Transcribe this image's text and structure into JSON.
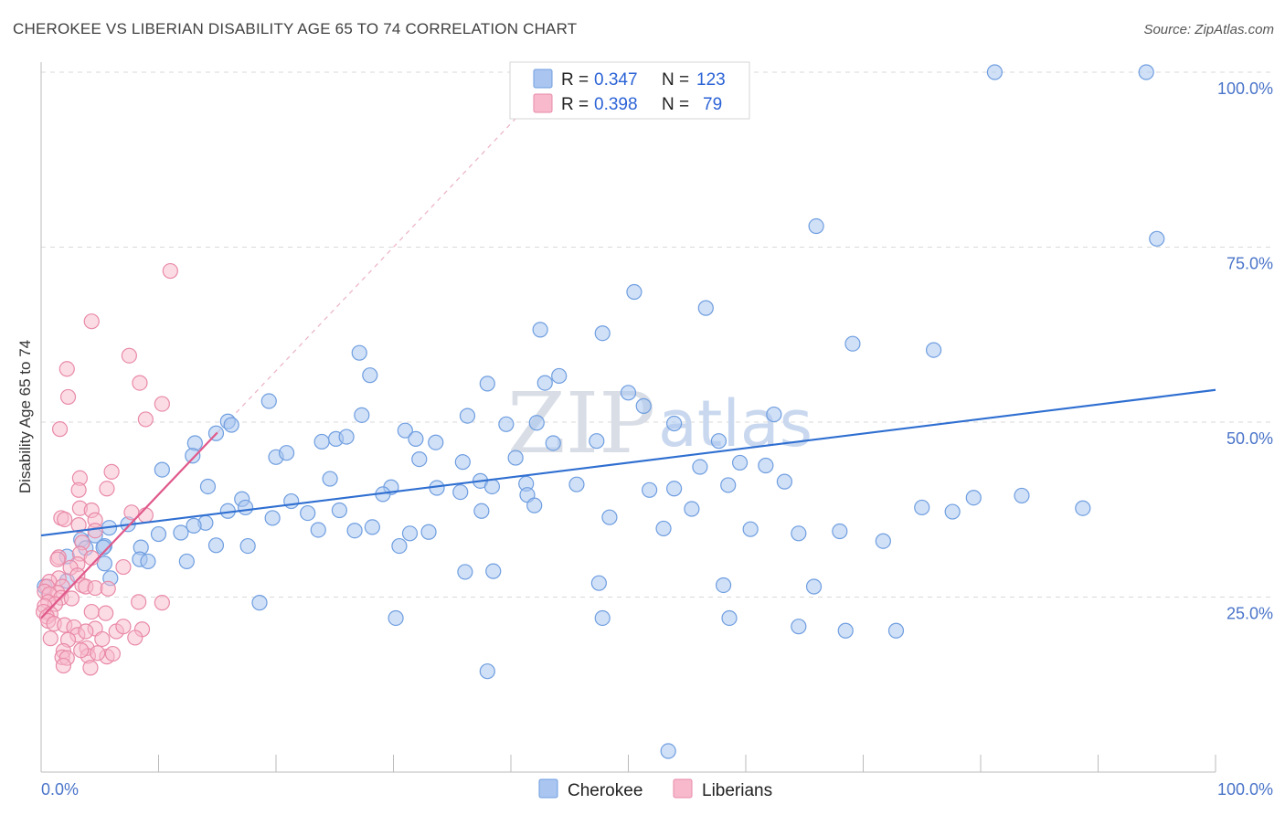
{
  "title": "CHEROKEE VS LIBERIAN DISABILITY AGE 65 TO 74 CORRELATION CHART",
  "source": "Source: ZipAtlas.com",
  "watermark": {
    "zip": "ZIP",
    "atlas": "atlas"
  },
  "colors": {
    "cherokee_fill": "#aac6f0",
    "cherokee_stroke": "#6f9ee0",
    "cherokee_line": "#2f6fd1",
    "liberian_fill": "#f7b9cb",
    "liberian_stroke": "#e98aa8",
    "liberian_line": "#e0588a",
    "axis_text": "#4a74c9",
    "grid": "#d9d9d9"
  },
  "legend": {
    "rows": [
      {
        "r_label": "R =",
        "r_value": "0.347",
        "n_label": "N =",
        "n_value": "123"
      },
      {
        "r_label": "R =",
        "r_value": "0.398",
        "n_label": "N =",
        "n_value": "79"
      }
    ]
  },
  "bottom_legend": [
    "Cherokee",
    "Liberians"
  ],
  "chart_data": {
    "type": "scatter",
    "title": "CHEROKEE VS LIBERIAN DISABILITY AGE 65 TO 74 CORRELATION CHART",
    "xlabel": "",
    "ylabel": "Disability Age 65 to 74",
    "xlim": [
      0,
      100
    ],
    "ylim": [
      0,
      102
    ],
    "x_tick_labels": [
      "0.0%",
      "100.0%"
    ],
    "y_tick_labels": [
      "25.0%",
      "50.0%",
      "75.0%",
      "100.0%"
    ],
    "y_ticks": [
      25,
      50,
      75,
      100
    ],
    "grid": true,
    "legend_position": "top-center",
    "series": [
      {
        "name": "Cherokee",
        "r": 0.347,
        "n": 123,
        "trend": {
          "x": [
            0,
            100
          ],
          "y": [
            33.8,
            54.6
          ]
        },
        "points": [
          [
            81.2,
            100
          ],
          [
            94.1,
            100
          ],
          [
            95.0,
            76.2
          ],
          [
            66.0,
            78.0
          ],
          [
            50.5,
            68.6
          ],
          [
            56.6,
            66.3
          ],
          [
            42.5,
            63.2
          ],
          [
            47.8,
            62.7
          ],
          [
            69.1,
            61.2
          ],
          [
            76.0,
            60.3
          ],
          [
            27.1,
            59.9
          ],
          [
            28.0,
            56.7
          ],
          [
            38.0,
            55.5
          ],
          [
            42.9,
            55.6
          ],
          [
            44.1,
            56.6
          ],
          [
            50.0,
            54.2
          ],
          [
            51.3,
            52.3
          ],
          [
            19.4,
            53.0
          ],
          [
            27.3,
            51.0
          ],
          [
            36.3,
            50.9
          ],
          [
            62.4,
            51.1
          ],
          [
            15.9,
            50.1
          ],
          [
            39.6,
            49.7
          ],
          [
            42.2,
            49.9
          ],
          [
            53.9,
            49.8
          ],
          [
            14.9,
            48.4
          ],
          [
            25.1,
            47.6
          ],
          [
            26.0,
            47.9
          ],
          [
            23.9,
            47.2
          ],
          [
            31.0,
            48.8
          ],
          [
            33.6,
            47.1
          ],
          [
            43.6,
            47.0
          ],
          [
            47.3,
            47.3
          ],
          [
            57.7,
            47.3
          ],
          [
            16.2,
            49.6
          ],
          [
            13.1,
            47.0
          ],
          [
            12.9,
            45.2
          ],
          [
            20.0,
            45.0
          ],
          [
            20.9,
            45.6
          ],
          [
            32.2,
            44.7
          ],
          [
            40.4,
            44.9
          ],
          [
            56.1,
            43.6
          ],
          [
            59.5,
            44.2
          ],
          [
            61.7,
            43.8
          ],
          [
            31.9,
            47.6
          ],
          [
            24.6,
            41.9
          ],
          [
            35.9,
            44.3
          ],
          [
            41.3,
            41.2
          ],
          [
            37.4,
            41.6
          ],
          [
            29.8,
            40.7
          ],
          [
            38.4,
            40.8
          ],
          [
            45.6,
            41.1
          ],
          [
            51.8,
            40.3
          ],
          [
            53.9,
            40.5
          ],
          [
            58.5,
            41.0
          ],
          [
            63.3,
            41.5
          ],
          [
            10.3,
            43.2
          ],
          [
            14.2,
            40.8
          ],
          [
            17.1,
            39.0
          ],
          [
            21.3,
            38.7
          ],
          [
            22.7,
            37.0
          ],
          [
            25.4,
            37.4
          ],
          [
            29.1,
            39.7
          ],
          [
            33.7,
            40.6
          ],
          [
            35.7,
            40.0
          ],
          [
            37.5,
            37.3
          ],
          [
            41.4,
            39.6
          ],
          [
            42.0,
            38.1
          ],
          [
            48.4,
            36.4
          ],
          [
            53.0,
            34.8
          ],
          [
            55.4,
            37.6
          ],
          [
            75.0,
            37.8
          ],
          [
            79.4,
            39.2
          ],
          [
            77.6,
            37.2
          ],
          [
            83.5,
            39.5
          ],
          [
            88.7,
            37.7
          ],
          [
            15.9,
            37.3
          ],
          [
            14.0,
            35.6
          ],
          [
            13.0,
            35.2
          ],
          [
            11.9,
            34.2
          ],
          [
            10.0,
            34.0
          ],
          [
            17.4,
            37.8
          ],
          [
            19.7,
            36.3
          ],
          [
            31.4,
            34.1
          ],
          [
            33.0,
            34.3
          ],
          [
            26.7,
            34.5
          ],
          [
            23.6,
            34.6
          ],
          [
            28.2,
            35.0
          ],
          [
            60.4,
            34.7
          ],
          [
            64.5,
            34.1
          ],
          [
            68.0,
            34.4
          ],
          [
            71.7,
            33.0
          ],
          [
            7.4,
            35.4
          ],
          [
            5.8,
            34.9
          ],
          [
            4.6,
            33.8
          ],
          [
            3.4,
            33.2
          ],
          [
            5.4,
            32.3
          ],
          [
            8.5,
            32.1
          ],
          [
            14.9,
            32.4
          ],
          [
            17.6,
            32.3
          ],
          [
            30.5,
            32.3
          ],
          [
            2.2,
            30.8
          ],
          [
            3.8,
            32.0
          ],
          [
            5.3,
            32.1
          ],
          [
            8.4,
            30.4
          ],
          [
            9.1,
            30.1
          ],
          [
            12.4,
            30.1
          ],
          [
            5.4,
            29.8
          ],
          [
            2.2,
            27.3
          ],
          [
            5.9,
            27.7
          ],
          [
            0.3,
            26.5
          ],
          [
            36.1,
            28.6
          ],
          [
            38.5,
            28.7
          ],
          [
            47.5,
            27.0
          ],
          [
            58.1,
            26.7
          ],
          [
            65.8,
            26.5
          ],
          [
            18.6,
            24.2
          ],
          [
            30.2,
            22.0
          ],
          [
            47.8,
            22.0
          ],
          [
            58.6,
            22.0
          ],
          [
            64.5,
            20.8
          ],
          [
            68.5,
            20.2
          ],
          [
            72.8,
            20.2
          ],
          [
            38.0,
            14.4
          ],
          [
            53.4,
            3.0
          ]
        ]
      },
      {
        "name": "Liberians",
        "r": 0.398,
        "n": 79,
        "trend": {
          "x": [
            0,
            15
          ],
          "y": [
            22.0,
            48.5
          ]
        },
        "points": [
          [
            11.0,
            71.6
          ],
          [
            4.3,
            64.4
          ],
          [
            7.5,
            59.5
          ],
          [
            2.2,
            57.6
          ],
          [
            8.4,
            55.6
          ],
          [
            2.3,
            53.6
          ],
          [
            10.3,
            52.6
          ],
          [
            8.9,
            50.4
          ],
          [
            1.6,
            49.0
          ],
          [
            6.0,
            42.9
          ],
          [
            3.3,
            42.0
          ],
          [
            3.2,
            40.3
          ],
          [
            5.6,
            40.5
          ],
          [
            3.3,
            37.7
          ],
          [
            4.3,
            37.4
          ],
          [
            7.7,
            37.1
          ],
          [
            8.9,
            36.7
          ],
          [
            1.7,
            36.3
          ],
          [
            2.0,
            36.1
          ],
          [
            3.2,
            35.3
          ],
          [
            4.6,
            36.0
          ],
          [
            4.6,
            34.5
          ],
          [
            3.5,
            32.8
          ],
          [
            3.3,
            31.2
          ],
          [
            1.5,
            30.7
          ],
          [
            1.4,
            30.4
          ],
          [
            4.3,
            30.6
          ],
          [
            3.1,
            29.7
          ],
          [
            2.5,
            29.2
          ],
          [
            7.0,
            29.3
          ],
          [
            3.1,
            28.1
          ],
          [
            1.5,
            27.7
          ],
          [
            0.7,
            27.2
          ],
          [
            0.5,
            26.5
          ],
          [
            1.8,
            26.5
          ],
          [
            3.5,
            26.7
          ],
          [
            3.8,
            26.5
          ],
          [
            4.6,
            26.3
          ],
          [
            5.7,
            26.2
          ],
          [
            0.3,
            25.8
          ],
          [
            1.4,
            25.6
          ],
          [
            0.7,
            25.4
          ],
          [
            1.7,
            24.9
          ],
          [
            2.6,
            24.8
          ],
          [
            0.6,
            24.3
          ],
          [
            1.2,
            24.0
          ],
          [
            0.3,
            23.7
          ],
          [
            8.3,
            24.3
          ],
          [
            10.3,
            24.2
          ],
          [
            0.2,
            22.9
          ],
          [
            0.8,
            22.6
          ],
          [
            0.5,
            22.2
          ],
          [
            4.3,
            22.9
          ],
          [
            5.5,
            22.7
          ],
          [
            0.6,
            21.6
          ],
          [
            1.1,
            21.2
          ],
          [
            2.0,
            21.0
          ],
          [
            2.8,
            20.7
          ],
          [
            3.1,
            19.6
          ],
          [
            4.6,
            20.5
          ],
          [
            6.4,
            20.1
          ],
          [
            7.0,
            20.8
          ],
          [
            8.6,
            20.4
          ],
          [
            3.8,
            20.1
          ],
          [
            0.8,
            19.1
          ],
          [
            2.3,
            18.9
          ],
          [
            3.9,
            17.7
          ],
          [
            1.9,
            17.3
          ],
          [
            1.8,
            16.4
          ],
          [
            2.2,
            16.3
          ],
          [
            4.0,
            16.6
          ],
          [
            5.6,
            16.5
          ],
          [
            1.9,
            15.2
          ],
          [
            4.2,
            14.9
          ],
          [
            3.4,
            17.4
          ],
          [
            4.8,
            17.0
          ],
          [
            6.1,
            16.9
          ],
          [
            5.2,
            19.0
          ],
          [
            8.0,
            19.2
          ]
        ]
      }
    ]
  }
}
